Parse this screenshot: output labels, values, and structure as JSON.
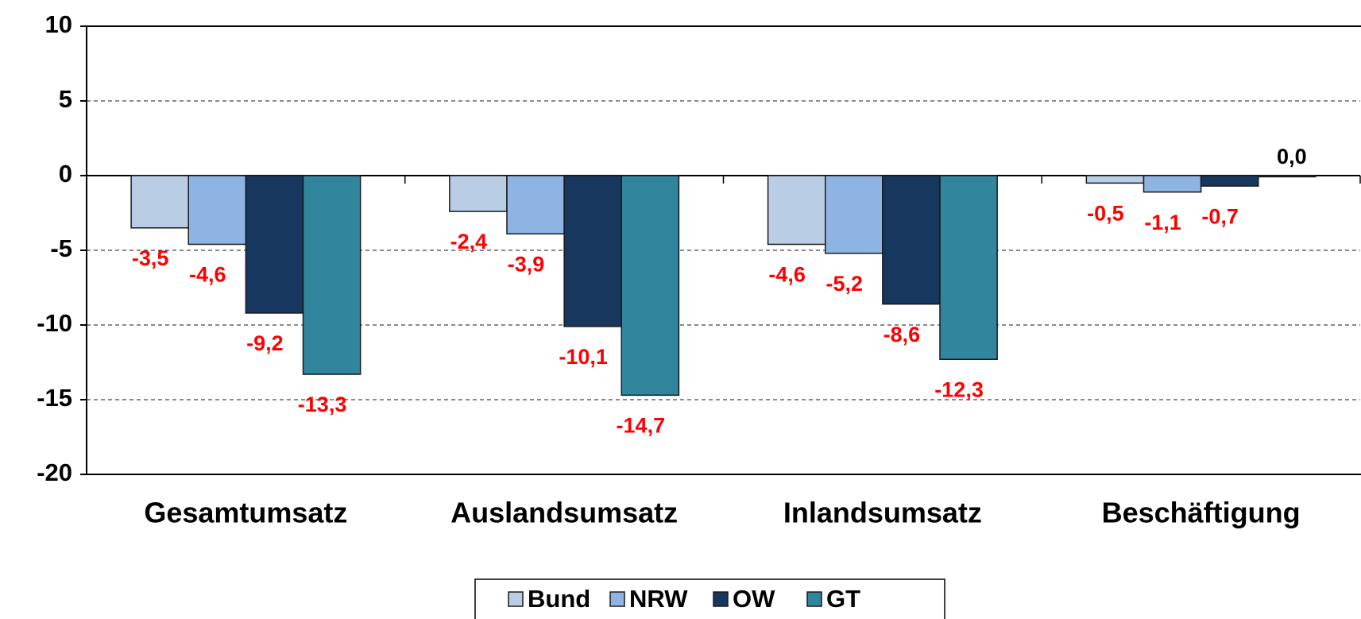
{
  "chart_data": {
    "type": "bar",
    "categories": [
      "Gesamtumsatz",
      "Auslandsumsatz",
      "Inlandsumsatz",
      "Beschäftigung"
    ],
    "series": [
      {
        "name": "Bund",
        "color": "#b9cde5",
        "values": [
          -3.5,
          -2.4,
          -4.6,
          -0.5
        ],
        "value_labels": [
          "-3,5",
          "-2,4",
          "-4,6",
          "-0,5"
        ]
      },
      {
        "name": "NRW",
        "color": "#8eb4e3",
        "values": [
          -4.6,
          -3.9,
          -5.2,
          -1.1
        ],
        "value_labels": [
          "-4,6",
          "-3,9",
          "-5,2",
          "-1,1"
        ]
      },
      {
        "name": "OW",
        "color": "#17375e",
        "values": [
          -9.2,
          -10.1,
          -8.6,
          -0.7
        ],
        "value_labels": [
          "-9,2",
          "-10,1",
          "-8,6",
          "-0,7"
        ]
      },
      {
        "name": "GT",
        "color": "#31859c",
        "values": [
          -13.3,
          -14.7,
          -12.3,
          0.0
        ],
        "value_labels": [
          "-13,3",
          "-14,7",
          "-12,3",
          "0,0"
        ]
      }
    ],
    "ylim": [
      -20,
      10
    ],
    "yticks": [
      -20,
      -15,
      -10,
      -5,
      0,
      5,
      10
    ],
    "grid": true,
    "label_color": "#ff0000"
  }
}
